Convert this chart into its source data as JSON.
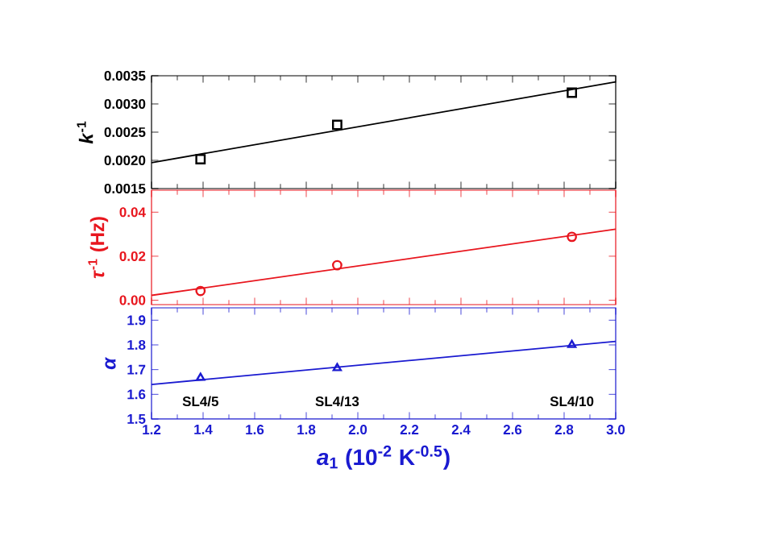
{
  "chart_data": [
    {
      "type": "scatter",
      "ylabel": "*k*$^{-1}$",
      "xlim": [
        1.2,
        3.0
      ],
      "xticks": [
        1.2,
        1.4,
        1.6,
        1.8,
        2.0,
        2.2,
        2.4,
        2.6,
        2.8,
        3.0
      ],
      "ylim": [
        0.0015,
        0.0035
      ],
      "yticks": [
        0.0015,
        {
          "value": 0.002,
          "label": "0.0020"
        },
        0.0025,
        {
          "value": 0.003,
          "label": "0.0030"
        },
        0.0035
      ],
      "tick_labels": "y",
      "series": [
        {
          "color": "#000000",
          "marker": "square",
          "x": [
            1.39,
            1.92,
            2.83
          ],
          "values": [
            0.00202,
            0.00263,
            0.0032
          ]
        },
        {
          "type": "line",
          "color": "#000000",
          "x": [
            1.2,
            3.0
          ],
          "values": [
            0.00196,
            0.00339
          ]
        }
      ]
    },
    {
      "type": "scatter",
      "ylabel": "*τ*$^{-1}$ (Hz)",
      "xlim": [
        1.2,
        3.0
      ],
      "xticks": [
        1.2,
        1.4,
        1.6,
        1.8,
        2.0,
        2.2,
        2.4,
        2.6,
        2.8,
        3.0
      ],
      "ylim": [
        -0.002,
        0.05
      ],
      "yticks": [
        {
          "value": 0,
          "label": "0.00"
        },
        0.02,
        0.04
      ],
      "tick_labels": "y",
      "series": [
        {
          "color": "#e8161e",
          "marker": "circle",
          "x": [
            1.39,
            1.92,
            2.83
          ],
          "values": [
            0.0042,
            0.0159,
            0.0288
          ]
        },
        {
          "type": "line",
          "color": "#e8161e",
          "x": [
            1.2,
            3.0
          ],
          "values": [
            0.0022,
            0.0323
          ]
        }
      ]
    },
    {
      "type": "scatter",
      "ylabel": "*α*",
      "xlabel": "*a*$_{1}$ (10$^{-2}$ K$^{-0.5}$)",
      "xlim": [
        1.2,
        3.0
      ],
      "xticks": [
        {
          "value": 1.2,
          "label": "1.2"
        },
        {
          "value": 1.4,
          "label": "1.4"
        },
        {
          "value": 1.6,
          "label": "1.6"
        },
        {
          "value": 1.8,
          "label": "1.8"
        },
        {
          "value": 2.0,
          "label": "2.0"
        },
        {
          "value": 2.2,
          "label": "2.2"
        },
        {
          "value": 2.4,
          "label": "2.4"
        },
        {
          "value": 2.6,
          "label": "2.6"
        },
        {
          "value": 2.8,
          "label": "2.8"
        },
        {
          "value": 3.0,
          "label": "3.0"
        }
      ],
      "ylim": [
        1.5,
        1.95
      ],
      "yticks": [
        1.5,
        1.6,
        1.7,
        1.8,
        1.9
      ],
      "annotations": [
        "SL4/5",
        "SL4/13",
        "SL4/10"
      ],
      "series": [
        {
          "color": "#1a1ad0",
          "marker": "triangle",
          "x": [
            1.39,
            1.92,
            2.83
          ],
          "values": [
            1.667,
            1.706,
            1.8
          ]
        },
        {
          "type": "line",
          "color": "#1a1ad0",
          "x": [
            1.2,
            3.0
          ],
          "values": [
            1.64,
            1.814
          ]
        }
      ]
    }
  ]
}
